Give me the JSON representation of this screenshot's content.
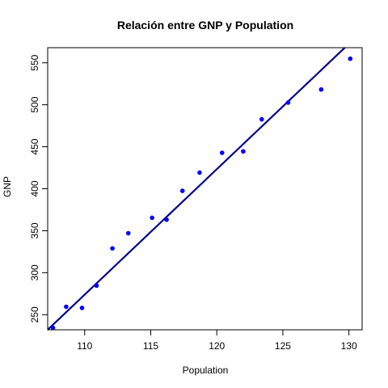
{
  "chart_data": {
    "type": "scatter",
    "title": "Relación entre GNP y Population",
    "xlabel": "Population",
    "ylabel": "GNP",
    "xlim": [
      107.2,
      131.0
    ],
    "ylim": [
      232,
      568
    ],
    "x_ticks": [
      110,
      115,
      120,
      125,
      130
    ],
    "y_ticks": [
      250,
      300,
      350,
      400,
      450,
      500,
      550
    ],
    "grid": false,
    "legend": "none",
    "point_color": "#0000ff",
    "line_color": "#00008b",
    "series": [
      {
        "points": [
          {
            "x": 107.6,
            "y": 234.3
          },
          {
            "x": 108.6,
            "y": 259.4
          },
          {
            "x": 109.8,
            "y": 258.1
          },
          {
            "x": 110.9,
            "y": 284.6
          },
          {
            "x": 112.1,
            "y": 329.0
          },
          {
            "x": 113.3,
            "y": 347.0
          },
          {
            "x": 115.1,
            "y": 365.4
          },
          {
            "x": 116.2,
            "y": 363.1
          },
          {
            "x": 117.4,
            "y": 397.5
          },
          {
            "x": 118.7,
            "y": 419.2
          },
          {
            "x": 120.4,
            "y": 442.8
          },
          {
            "x": 122.0,
            "y": 444.5
          },
          {
            "x": 123.4,
            "y": 482.7
          },
          {
            "x": 125.4,
            "y": 502.6
          },
          {
            "x": 127.9,
            "y": 518.2
          },
          {
            "x": 130.1,
            "y": 554.9
          }
        ]
      }
    ],
    "regression_line": {
      "intercept": -1369.5,
      "slope": 14.94
    }
  }
}
